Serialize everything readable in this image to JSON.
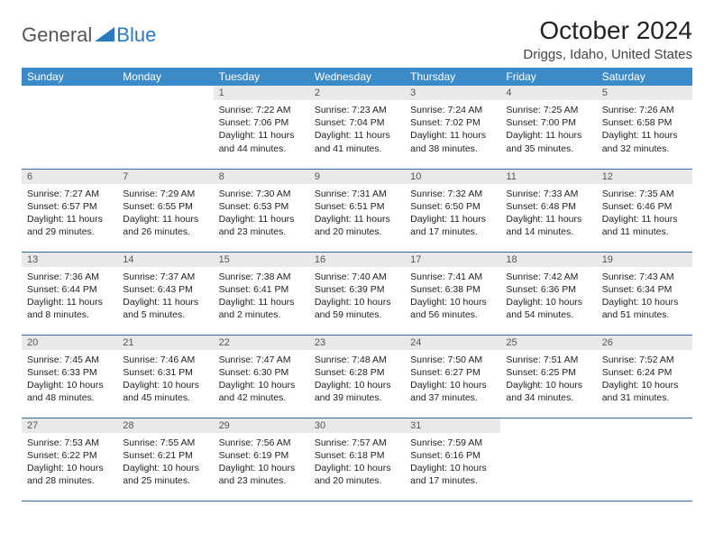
{
  "logo": {
    "text_general": "General",
    "text_blue": "Blue"
  },
  "title": "October 2024",
  "location": "Driggs, Idaho, United States",
  "colors": {
    "header_bg": "#3b8bc8",
    "header_text": "#ffffff",
    "daynum_bg": "#e9e9e9",
    "border": "#2b6ca3",
    "logo_blue": "#2a7abf"
  },
  "day_headers": [
    "Sunday",
    "Monday",
    "Tuesday",
    "Wednesday",
    "Thursday",
    "Friday",
    "Saturday"
  ],
  "weeks": [
    [
      null,
      null,
      {
        "n": "1",
        "sr": "Sunrise: 7:22 AM",
        "ss": "Sunset: 7:06 PM",
        "dl": "Daylight: 11 hours and 44 minutes."
      },
      {
        "n": "2",
        "sr": "Sunrise: 7:23 AM",
        "ss": "Sunset: 7:04 PM",
        "dl": "Daylight: 11 hours and 41 minutes."
      },
      {
        "n": "3",
        "sr": "Sunrise: 7:24 AM",
        "ss": "Sunset: 7:02 PM",
        "dl": "Daylight: 11 hours and 38 minutes."
      },
      {
        "n": "4",
        "sr": "Sunrise: 7:25 AM",
        "ss": "Sunset: 7:00 PM",
        "dl": "Daylight: 11 hours and 35 minutes."
      },
      {
        "n": "5",
        "sr": "Sunrise: 7:26 AM",
        "ss": "Sunset: 6:58 PM",
        "dl": "Daylight: 11 hours and 32 minutes."
      }
    ],
    [
      {
        "n": "6",
        "sr": "Sunrise: 7:27 AM",
        "ss": "Sunset: 6:57 PM",
        "dl": "Daylight: 11 hours and 29 minutes."
      },
      {
        "n": "7",
        "sr": "Sunrise: 7:29 AM",
        "ss": "Sunset: 6:55 PM",
        "dl": "Daylight: 11 hours and 26 minutes."
      },
      {
        "n": "8",
        "sr": "Sunrise: 7:30 AM",
        "ss": "Sunset: 6:53 PM",
        "dl": "Daylight: 11 hours and 23 minutes."
      },
      {
        "n": "9",
        "sr": "Sunrise: 7:31 AM",
        "ss": "Sunset: 6:51 PM",
        "dl": "Daylight: 11 hours and 20 minutes."
      },
      {
        "n": "10",
        "sr": "Sunrise: 7:32 AM",
        "ss": "Sunset: 6:50 PM",
        "dl": "Daylight: 11 hours and 17 minutes."
      },
      {
        "n": "11",
        "sr": "Sunrise: 7:33 AM",
        "ss": "Sunset: 6:48 PM",
        "dl": "Daylight: 11 hours and 14 minutes."
      },
      {
        "n": "12",
        "sr": "Sunrise: 7:35 AM",
        "ss": "Sunset: 6:46 PM",
        "dl": "Daylight: 11 hours and 11 minutes."
      }
    ],
    [
      {
        "n": "13",
        "sr": "Sunrise: 7:36 AM",
        "ss": "Sunset: 6:44 PM",
        "dl": "Daylight: 11 hours and 8 minutes."
      },
      {
        "n": "14",
        "sr": "Sunrise: 7:37 AM",
        "ss": "Sunset: 6:43 PM",
        "dl": "Daylight: 11 hours and 5 minutes."
      },
      {
        "n": "15",
        "sr": "Sunrise: 7:38 AM",
        "ss": "Sunset: 6:41 PM",
        "dl": "Daylight: 11 hours and 2 minutes."
      },
      {
        "n": "16",
        "sr": "Sunrise: 7:40 AM",
        "ss": "Sunset: 6:39 PM",
        "dl": "Daylight: 10 hours and 59 minutes."
      },
      {
        "n": "17",
        "sr": "Sunrise: 7:41 AM",
        "ss": "Sunset: 6:38 PM",
        "dl": "Daylight: 10 hours and 56 minutes."
      },
      {
        "n": "18",
        "sr": "Sunrise: 7:42 AM",
        "ss": "Sunset: 6:36 PM",
        "dl": "Daylight: 10 hours and 54 minutes."
      },
      {
        "n": "19",
        "sr": "Sunrise: 7:43 AM",
        "ss": "Sunset: 6:34 PM",
        "dl": "Daylight: 10 hours and 51 minutes."
      }
    ],
    [
      {
        "n": "20",
        "sr": "Sunrise: 7:45 AM",
        "ss": "Sunset: 6:33 PM",
        "dl": "Daylight: 10 hours and 48 minutes."
      },
      {
        "n": "21",
        "sr": "Sunrise: 7:46 AM",
        "ss": "Sunset: 6:31 PM",
        "dl": "Daylight: 10 hours and 45 minutes."
      },
      {
        "n": "22",
        "sr": "Sunrise: 7:47 AM",
        "ss": "Sunset: 6:30 PM",
        "dl": "Daylight: 10 hours and 42 minutes."
      },
      {
        "n": "23",
        "sr": "Sunrise: 7:48 AM",
        "ss": "Sunset: 6:28 PM",
        "dl": "Daylight: 10 hours and 39 minutes."
      },
      {
        "n": "24",
        "sr": "Sunrise: 7:50 AM",
        "ss": "Sunset: 6:27 PM",
        "dl": "Daylight: 10 hours and 37 minutes."
      },
      {
        "n": "25",
        "sr": "Sunrise: 7:51 AM",
        "ss": "Sunset: 6:25 PM",
        "dl": "Daylight: 10 hours and 34 minutes."
      },
      {
        "n": "26",
        "sr": "Sunrise: 7:52 AM",
        "ss": "Sunset: 6:24 PM",
        "dl": "Daylight: 10 hours and 31 minutes."
      }
    ],
    [
      {
        "n": "27",
        "sr": "Sunrise: 7:53 AM",
        "ss": "Sunset: 6:22 PM",
        "dl": "Daylight: 10 hours and 28 minutes."
      },
      {
        "n": "28",
        "sr": "Sunrise: 7:55 AM",
        "ss": "Sunset: 6:21 PM",
        "dl": "Daylight: 10 hours and 25 minutes."
      },
      {
        "n": "29",
        "sr": "Sunrise: 7:56 AM",
        "ss": "Sunset: 6:19 PM",
        "dl": "Daylight: 10 hours and 23 minutes."
      },
      {
        "n": "30",
        "sr": "Sunrise: 7:57 AM",
        "ss": "Sunset: 6:18 PM",
        "dl": "Daylight: 10 hours and 20 minutes."
      },
      {
        "n": "31",
        "sr": "Sunrise: 7:59 AM",
        "ss": "Sunset: 6:16 PM",
        "dl": "Daylight: 10 hours and 17 minutes."
      },
      null,
      null
    ]
  ]
}
